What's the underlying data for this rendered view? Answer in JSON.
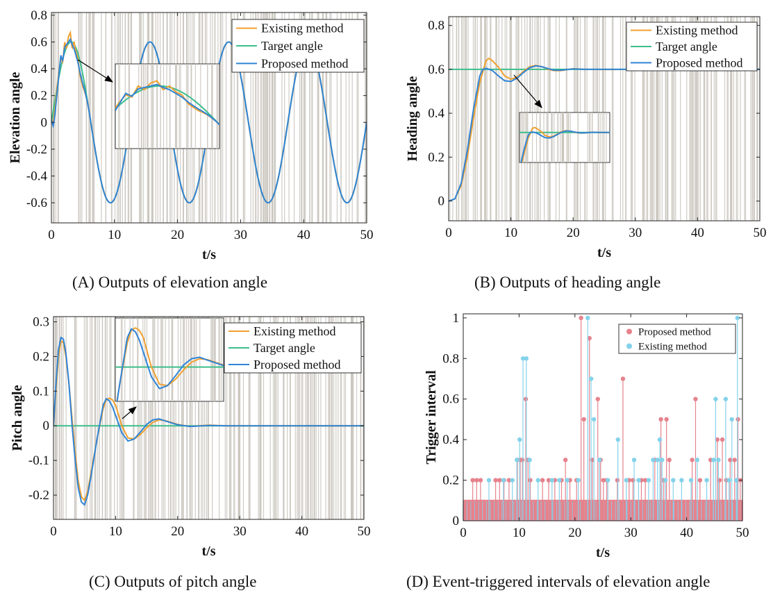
{
  "colors": {
    "existing": "#F0A030",
    "target": "#3DBE8A",
    "proposed": "#2F84D6",
    "trigger_bg": "#C8C4BC",
    "proposed_stem": "#E6828D",
    "existing_stem": "#84D2EA"
  },
  "captions": {
    "a": "(A) Outputs of elevation angle",
    "b": "(B) Outputs of heading angle",
    "c": "(C) Outputs of pitch angle",
    "d": "(D) Event-triggered intervals of elevation angle"
  },
  "chart_data": [
    {
      "type": "line",
      "xlabel": "t/s",
      "ylabel": "Elevation angle",
      "xlim": [
        0,
        50
      ],
      "ylim": [
        -0.75,
        0.82
      ],
      "xticks": [
        0,
        10,
        20,
        30,
        40,
        50
      ],
      "yticks": [
        -0.6,
        -0.4,
        -0.2,
        0,
        0.2,
        0.4,
        0.6,
        0.8
      ],
      "xtick_labels": [
        "0",
        "10",
        "20",
        "30",
        "40",
        "50"
      ],
      "ytick_labels": [
        "-0.6",
        "-0.4",
        "-0.2",
        "0",
        "0.2",
        "0.4",
        "0.6",
        "0.8"
      ],
      "legend": [
        "Existing method",
        "Target angle",
        "Proposed method"
      ],
      "legend_position": "top-right",
      "target_signal": "0.6*sin(2*pi*t/12.5)",
      "series": [
        {
          "name": "Existing method",
          "x": [
            0,
            0.3,
            0.6,
            0.9,
            1.2,
            1.5,
            1.8,
            2.1,
            2.4,
            2.7,
            3.0,
            3.3,
            3.6,
            3.9,
            4.2,
            4.5,
            5.0,
            6.0,
            8.0,
            9.4,
            12.0,
            15.6,
            18.8,
            21.9,
            25.0,
            28.1,
            31.3,
            34.4,
            37.5,
            40.6,
            43.8,
            46.9,
            50.0
          ],
          "y": [
            0.02,
            0.0,
            0.12,
            0.26,
            0.38,
            0.48,
            0.45,
            0.6,
            0.55,
            0.64,
            0.67,
            0.55,
            0.6,
            0.52,
            0.48,
            0.36,
            0.22,
            0.05,
            -0.44,
            -0.6,
            -0.15,
            0.6,
            0.0,
            -0.6,
            0.0,
            0.6,
            0.0,
            -0.6,
            0.0,
            0.6,
            0.0,
            -0.6,
            -0.1
          ]
        },
        {
          "name": "Target angle",
          "x": [
            0,
            3.125,
            6.25,
            9.375,
            12.5,
            15.625,
            18.75,
            21.875,
            25.0,
            28.125,
            31.25,
            34.375,
            37.5,
            40.625,
            43.75,
            46.875,
            50.0
          ],
          "y": [
            0,
            0.6,
            0.0,
            -0.6,
            0.0,
            0.6,
            0.0,
            -0.6,
            0.0,
            0.6,
            0.0,
            -0.6,
            0.0,
            0.6,
            0.0,
            -0.6,
            0.0
          ]
        },
        {
          "name": "Proposed method",
          "x": [
            0,
            0.3,
            0.6,
            0.9,
            1.2,
            1.5,
            1.8,
            2.1,
            2.4,
            2.7,
            3.0,
            3.3,
            3.6,
            3.9,
            4.2,
            4.5,
            5.0,
            6.0,
            8.0,
            9.4,
            12.0,
            15.6,
            18.8,
            21.9,
            25.0,
            28.1,
            31.3,
            34.4,
            37.5,
            40.6,
            43.8,
            46.9,
            50.0
          ],
          "y": [
            0.02,
            -0.03,
            0.08,
            0.22,
            0.36,
            0.5,
            0.46,
            0.56,
            0.58,
            0.6,
            0.62,
            0.58,
            0.55,
            0.5,
            0.45,
            0.38,
            0.25,
            0.05,
            -0.44,
            -0.6,
            -0.15,
            0.6,
            0.0,
            -0.6,
            0.0,
            0.6,
            0.0,
            -0.6,
            0.0,
            0.6,
            0.0,
            -0.6,
            -0.1
          ]
        }
      ]
    },
    {
      "type": "line",
      "xlabel": "t/s",
      "ylabel": "Heading angle",
      "xlim": [
        0,
        50
      ],
      "ylim": [
        -0.09,
        0.84
      ],
      "xticks": [
        0,
        10,
        20,
        30,
        40,
        50
      ],
      "yticks": [
        0,
        0.2,
        0.4,
        0.6,
        0.8
      ],
      "xtick_labels": [
        "0",
        "10",
        "20",
        "30",
        "40",
        "50"
      ],
      "ytick_labels": [
        "0",
        "0.2",
        "0.4",
        "0.6",
        "0.8"
      ],
      "legend": [
        "Existing method",
        "Target angle",
        "Proposed method"
      ],
      "legend_position": "top-right",
      "series": [
        {
          "name": "Existing method",
          "x": [
            0,
            1,
            2,
            3,
            4,
            5,
            6,
            6.5,
            7,
            8,
            9,
            10,
            11,
            12,
            13,
            14,
            15,
            16,
            17,
            18,
            20,
            22,
            25,
            30,
            35,
            40,
            45,
            50
          ],
          "y": [
            0,
            0.01,
            0.07,
            0.2,
            0.38,
            0.54,
            0.64,
            0.65,
            0.64,
            0.61,
            0.57,
            0.555,
            0.565,
            0.59,
            0.612,
            0.618,
            0.612,
            0.6,
            0.594,
            0.594,
            0.603,
            0.6,
            0.599,
            0.6,
            0.6,
            0.6,
            0.6,
            0.6
          ]
        },
        {
          "name": "Target angle",
          "x": [
            0,
            50
          ],
          "y": [
            0.6,
            0.6
          ]
        },
        {
          "name": "Proposed method",
          "x": [
            0,
            1,
            2,
            3,
            4,
            5,
            5.5,
            6,
            7,
            8,
            9,
            10,
            11,
            12,
            13,
            14,
            15,
            16,
            17,
            18,
            20,
            22,
            25,
            30,
            35,
            40,
            45,
            50
          ],
          "y": [
            0,
            0.01,
            0.08,
            0.23,
            0.42,
            0.57,
            0.6,
            0.605,
            0.595,
            0.57,
            0.548,
            0.545,
            0.56,
            0.585,
            0.607,
            0.616,
            0.612,
            0.603,
            0.596,
            0.596,
            0.602,
            0.6,
            0.6,
            0.6,
            0.6,
            0.6,
            0.6,
            0.6
          ]
        }
      ]
    },
    {
      "type": "line",
      "xlabel": "t/s",
      "ylabel": "Pitch angle",
      "xlim": [
        0,
        50
      ],
      "ylim": [
        -0.27,
        0.315
      ],
      "xticks": [
        0,
        10,
        20,
        30,
        40,
        50
      ],
      "yticks": [
        -0.2,
        -0.1,
        0,
        0.1,
        0.2,
        0.3
      ],
      "xtick_labels": [
        "0",
        "10",
        "20",
        "30",
        "40",
        "50"
      ],
      "ytick_labels": [
        "-0.2",
        "-0.1",
        "0",
        "0.1",
        "0.2",
        "0.3"
      ],
      "legend": [
        "Existing method",
        "Target angle",
        "Proposed method"
      ],
      "legend_position": "top-right",
      "series": [
        {
          "name": "Existing method",
          "x": [
            0,
            0.4,
            0.8,
            1.2,
            1.6,
            2.0,
            2.5,
            3.0,
            3.5,
            4.0,
            4.5,
            5.0,
            5.5,
            6.0,
            7.0,
            8.0,
            8.5,
            9.0,
            9.5,
            10.0,
            11.0,
            12.0,
            13.0,
            14.0,
            15.0,
            16.0,
            17.0,
            18.0,
            20.0,
            22.0,
            25.0,
            28.0,
            35.0,
            50.0
          ],
          "y": [
            0,
            0.1,
            0.2,
            0.245,
            0.24,
            0.2,
            0.12,
            0.02,
            -0.08,
            -0.16,
            -0.205,
            -0.215,
            -0.19,
            -0.14,
            -0.04,
            0.05,
            0.075,
            0.08,
            0.075,
            0.06,
            0.0,
            -0.035,
            -0.038,
            -0.025,
            -0.006,
            0.01,
            0.017,
            0.015,
            0.004,
            -0.002,
            0.002,
            0.0,
            0.0,
            0.0
          ]
        },
        {
          "name": "Target angle",
          "x": [
            0,
            50
          ],
          "y": [
            0,
            0
          ]
        },
        {
          "name": "Proposed method",
          "x": [
            0,
            0.4,
            0.8,
            1.2,
            1.6,
            2.0,
            2.5,
            3.0,
            3.5,
            4.0,
            4.5,
            5.0,
            5.5,
            6.0,
            7.0,
            8.0,
            8.5,
            9.0,
            9.5,
            10.0,
            11.0,
            12.0,
            13.0,
            14.0,
            15.0,
            16.0,
            17.0,
            18.0,
            20.0,
            22.0,
            25.0,
            28.0,
            35.0,
            50.0
          ],
          "y": [
            0,
            0.12,
            0.22,
            0.255,
            0.25,
            0.21,
            0.12,
            0.0,
            -0.1,
            -0.18,
            -0.22,
            -0.228,
            -0.2,
            -0.15,
            -0.04,
            0.06,
            0.078,
            0.072,
            0.055,
            0.03,
            -0.02,
            -0.044,
            -0.038,
            -0.018,
            0.004,
            0.017,
            0.02,
            0.014,
            0.003,
            -0.002,
            0.001,
            0.0,
            0.0,
            0.0
          ]
        }
      ]
    },
    {
      "type": "stem",
      "xlabel": "t/s",
      "ylabel": "Trigger interval",
      "xlim": [
        0,
        50
      ],
      "ylim": [
        0,
        1.02
      ],
      "xticks": [
        0,
        10,
        20,
        30,
        40,
        50
      ],
      "yticks": [
        0,
        0.2,
        0.4,
        0.6,
        0.8,
        1
      ],
      "xtick_labels": [
        "0",
        "10",
        "20",
        "30",
        "40",
        "50"
      ],
      "ytick_labels": [
        "0",
        "0.2",
        "0.4",
        "0.6",
        "0.8",
        "1"
      ],
      "legend": [
        "Proposed method",
        "Existing method"
      ],
      "legend_position": "top-right",
      "base_interval": 0.1,
      "series": [
        {
          "name": "Proposed method",
          "x": [
            1.7,
            2.4,
            3.1,
            5.8,
            6.5,
            7.3,
            8.2,
            9.7,
            10.2,
            10.6,
            11.2,
            11.6,
            12.0,
            14.2,
            15.3,
            16.4,
            17.6,
            18.3,
            19.1,
            20.3,
            21.1,
            21.6,
            22.6,
            23.1,
            24.1,
            24.6,
            25.1,
            25.7,
            27.6,
            28.6,
            29.7,
            30.4,
            31.9,
            32.6,
            34.3,
            35.4,
            35.9,
            36.4,
            36.9,
            41.0,
            41.6,
            42.4,
            44.3,
            45.5,
            45.9,
            46.4,
            47.1,
            47.8,
            48.6,
            49.2,
            49.6
          ],
          "y": [
            0.2,
            0.2,
            0.2,
            0.2,
            0.2,
            0.2,
            0.2,
            0.3,
            0.3,
            0.3,
            0.6,
            0.3,
            0.2,
            0.2,
            0.2,
            0.2,
            0.2,
            0.3,
            0.2,
            0.2,
            1.0,
            0.5,
            0.9,
            0.3,
            0.6,
            0.3,
            0.2,
            0.2,
            0.2,
            0.7,
            0.2,
            0.2,
            0.2,
            0.2,
            0.3,
            0.5,
            0.2,
            0.5,
            0.3,
            0.3,
            0.6,
            0.2,
            0.3,
            0.4,
            0.2,
            0.4,
            0.2,
            0.3,
            0.3,
            0.5,
            0.2
          ]
        },
        {
          "name": "Existing method",
          "x": [
            4.6,
            7.2,
            8.8,
            9.6,
            10.1,
            10.7,
            11.3,
            11.9,
            13.4,
            15.9,
            17.2,
            18.6,
            20.6,
            22.3,
            22.9,
            23.4,
            24.4,
            25.9,
            27.7,
            29.2,
            30.6,
            31.4,
            33.2,
            34.0,
            34.8,
            35.2,
            35.6,
            36.2,
            37.6,
            39.1,
            40.8,
            41.9,
            43.6,
            44.8,
            45.2,
            45.7,
            47.0,
            47.6,
            48.1,
            48.9,
            49.1
          ],
          "y": [
            0.2,
            0.2,
            0.2,
            0.3,
            0.4,
            0.8,
            0.8,
            0.3,
            0.2,
            0.2,
            0.2,
            0.2,
            0.2,
            1.0,
            0.7,
            0.5,
            0.3,
            0.2,
            0.4,
            0.2,
            0.3,
            0.2,
            0.2,
            0.3,
            0.3,
            0.4,
            0.3,
            0.2,
            0.2,
            0.2,
            0.2,
            0.3,
            0.2,
            0.3,
            0.6,
            0.3,
            0.6,
            0.2,
            0.5,
            0.2,
            1.0
          ]
        }
      ]
    }
  ]
}
